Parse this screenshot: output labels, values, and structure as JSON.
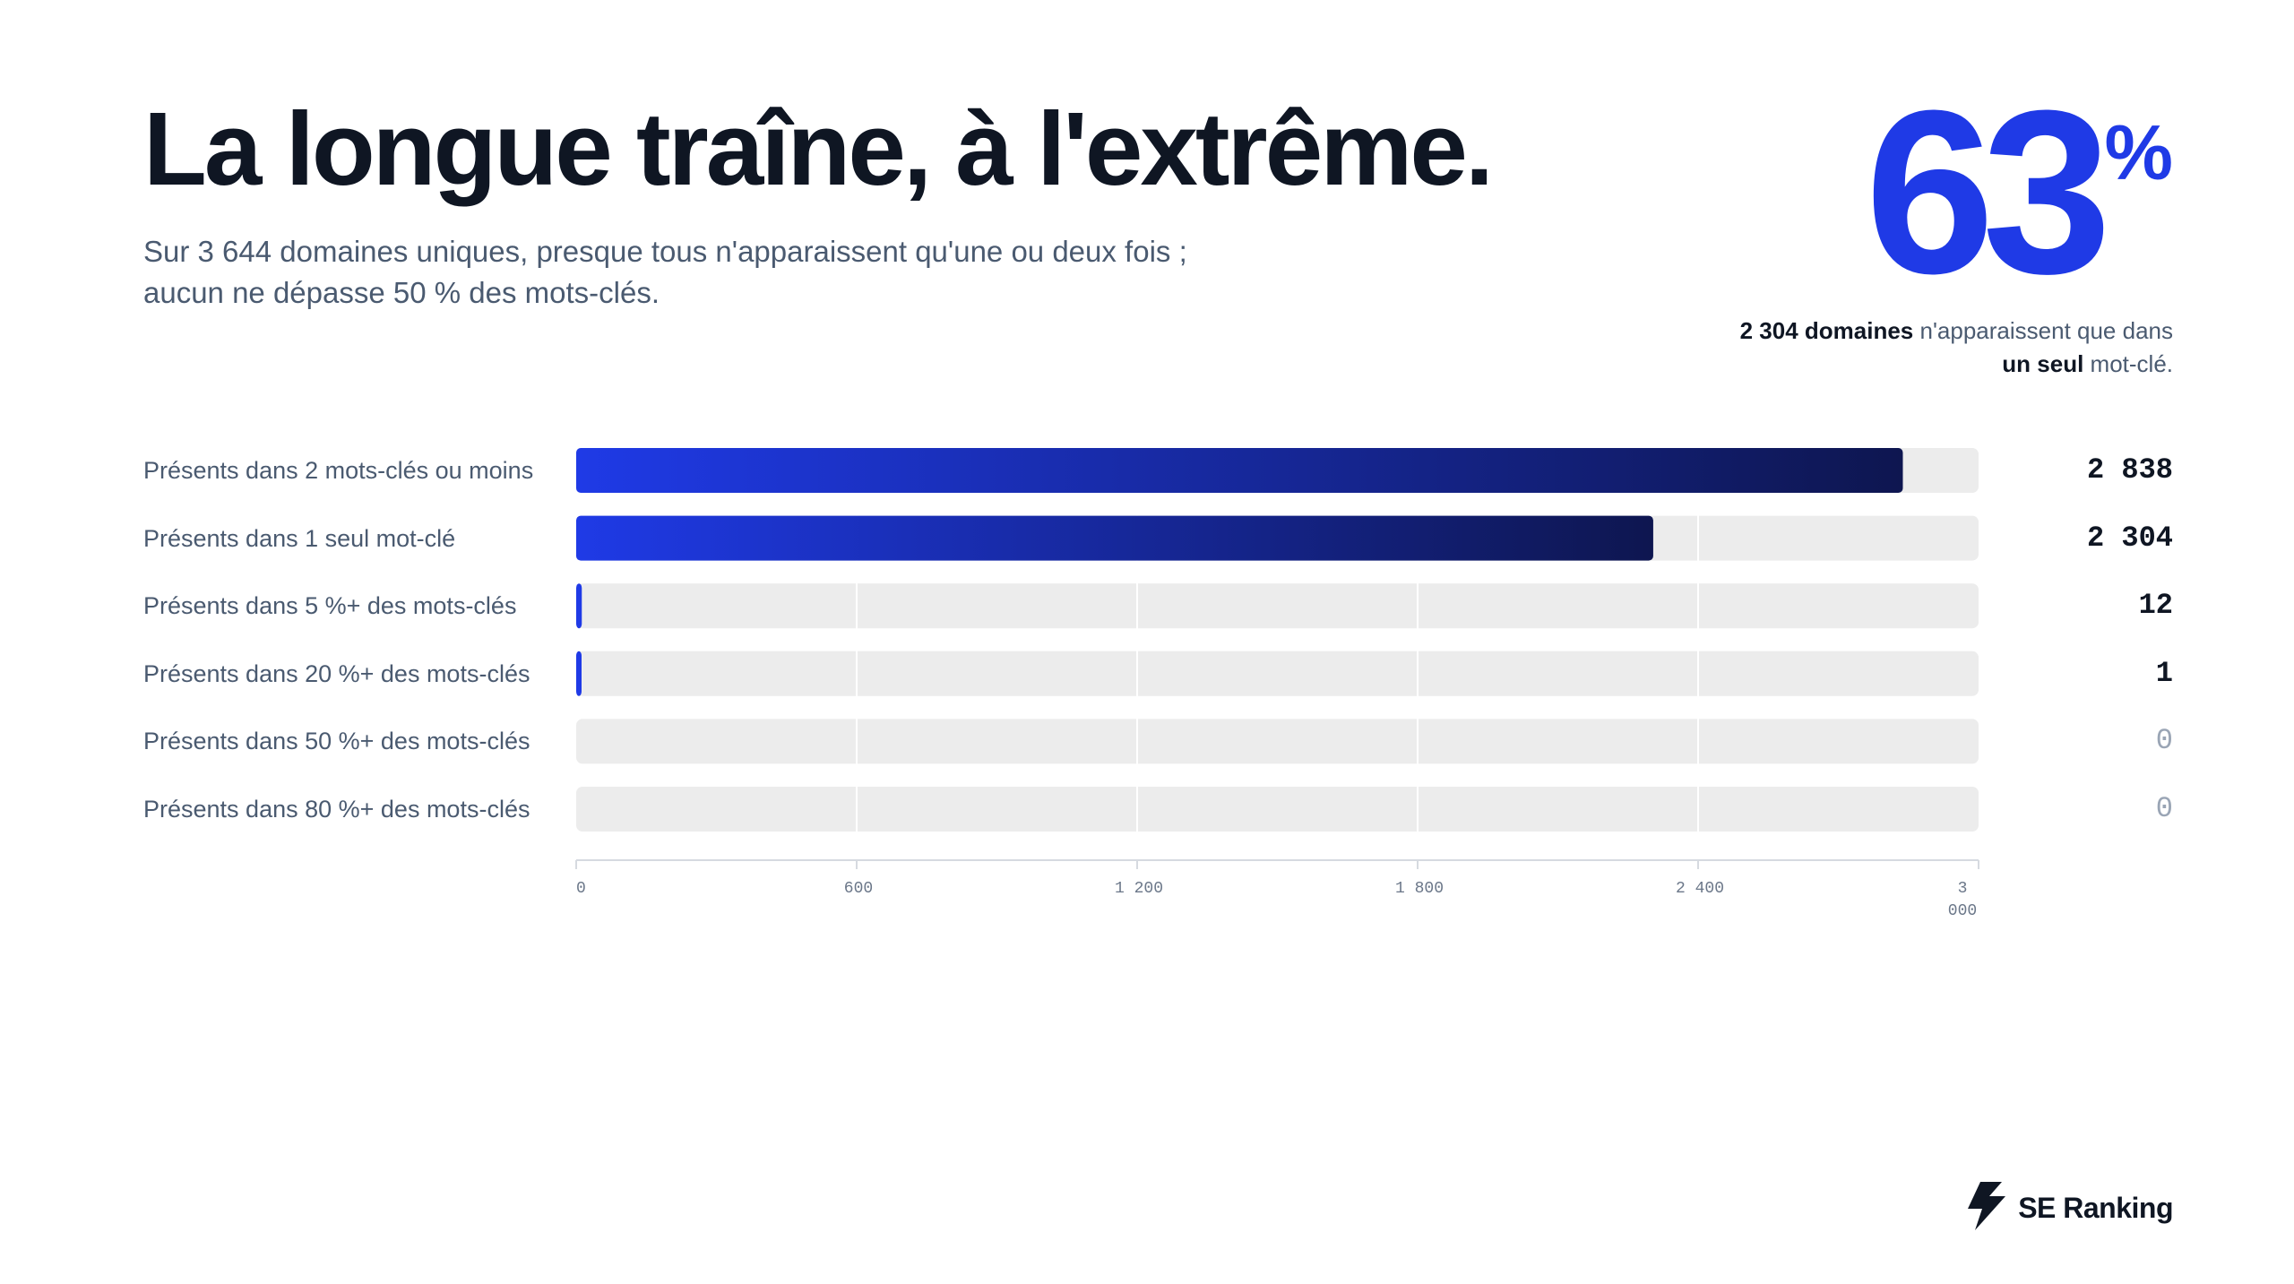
{
  "header": {
    "title": "La longue traîne, à l'extrême.",
    "subtitle_line1": "Sur 3 644 domaines uniques, presque tous n'apparaissent qu'une ou deux fois ;",
    "subtitle_line2": "aucun ne dépasse 50 % des mots-clés."
  },
  "stat": {
    "value": "63",
    "unit": "%",
    "note_bold1": "2 304 domaines",
    "note_rest1": " n'apparaissent que dans",
    "note_bold2": "un seul",
    "note_rest2": " mot-clé."
  },
  "brand": {
    "name": "SE Ranking",
    "icon": "se-ranking-logo-icon"
  },
  "colors": {
    "accent": "#1f3ae6",
    "bar_dark": "#0e1650",
    "track": "#ececec",
    "text_dark": "#0f1623",
    "text_muted": "#4a5a70"
  },
  "chart_data": {
    "type": "bar",
    "orientation": "horizontal",
    "categories": [
      "Présents dans 2 mots-clés ou moins",
      "Présents dans 1 seul mot-clé",
      "Présents dans 5 %+ des mots-clés",
      "Présents dans 20 %+ des mots-clés",
      "Présents dans 50 %+ des mots-clés",
      "Présents dans 80 %+ des mots-clés"
    ],
    "values": [
      2838,
      2304,
      12,
      1,
      0,
      0
    ],
    "value_labels": [
      "2 838",
      "2 304",
      "12",
      "1",
      "0",
      "0"
    ],
    "xlim": [
      0,
      3000
    ],
    "xticks": [
      0,
      600,
      1200,
      1800,
      2400,
      3000
    ],
    "xtick_labels": [
      "0",
      "600",
      "1 200",
      "1 800",
      "2 400",
      "3 000"
    ],
    "grid": true,
    "legend": "none"
  }
}
